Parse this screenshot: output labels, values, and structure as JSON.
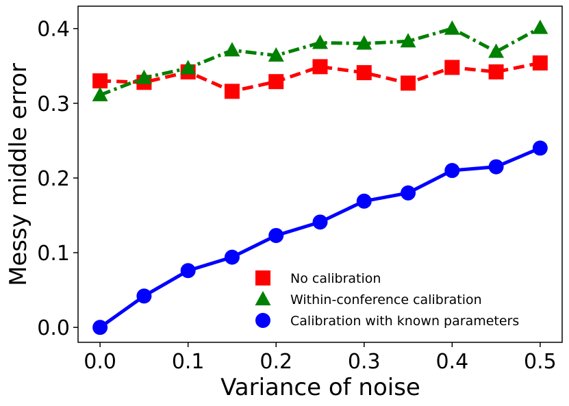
{
  "chart_data": {
    "type": "line",
    "title": "",
    "xlabel": "Variance of noise",
    "ylabel": "Messy middle error",
    "x": [
      0.0,
      0.05,
      0.1,
      0.15,
      0.2,
      0.25,
      0.3,
      0.35,
      0.4,
      0.45,
      0.5
    ],
    "xlim": [
      -0.025,
      0.525
    ],
    "ylim": [
      -0.02,
      0.43
    ],
    "xticks": [
      0.0,
      0.1,
      0.2,
      0.3,
      0.4,
      0.5
    ],
    "xtick_labels": [
      "0.0",
      "0.1",
      "0.2",
      "0.3",
      "0.4",
      "0.5"
    ],
    "yticks": [
      0.0,
      0.1,
      0.2,
      0.3,
      0.4
    ],
    "ytick_labels": [
      "0.0",
      "0.1",
      "0.2",
      "0.3",
      "0.4"
    ],
    "grid": false,
    "legend_position": "lower-right",
    "series": [
      {
        "name": "No calibration",
        "color": "#ff0000",
        "marker": "square",
        "line_style": "dashed",
        "values": [
          0.33,
          0.328,
          0.342,
          0.316,
          0.329,
          0.349,
          0.341,
          0.327,
          0.348,
          0.342,
          0.354
        ]
      },
      {
        "name": "Within-conference calibration",
        "color": "#008000",
        "marker": "triangle",
        "line_style": "dashdot",
        "values": [
          0.311,
          0.334,
          0.347,
          0.371,
          0.364,
          0.381,
          0.38,
          0.383,
          0.4,
          0.369,
          0.401
        ]
      },
      {
        "name": "Calibration with known parameters",
        "color": "#0000ff",
        "marker": "circle",
        "line_style": "solid",
        "values": [
          0.0,
          0.042,
          0.076,
          0.094,
          0.123,
          0.141,
          0.169,
          0.18,
          0.21,
          0.215,
          0.24
        ]
      }
    ]
  }
}
